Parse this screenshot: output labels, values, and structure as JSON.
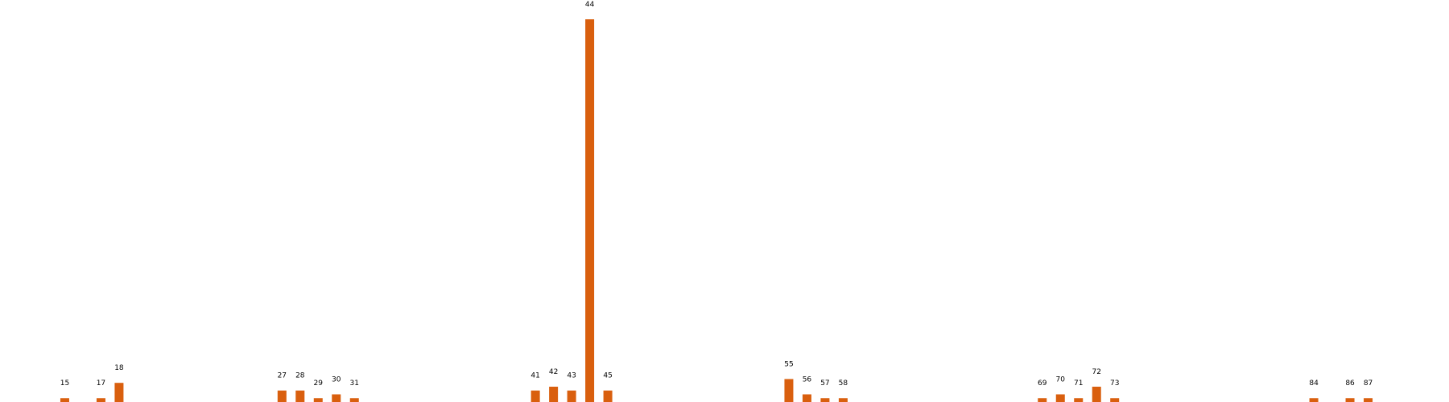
{
  "chart_data": {
    "type": "bar",
    "x": [
      15,
      17,
      18,
      27,
      28,
      29,
      30,
      31,
      41,
      42,
      43,
      44,
      45,
      55,
      56,
      57,
      58,
      69,
      70,
      71,
      72,
      73,
      84,
      86,
      87
    ],
    "values": [
      1,
      1,
      5,
      3,
      3,
      1,
      2,
      1,
      3,
      4,
      3,
      100,
      3,
      6,
      2,
      1,
      1,
      1,
      2,
      1,
      4,
      1,
      1,
      1,
      1
    ],
    "xlim": [
      12,
      90
    ],
    "ylim": [
      0,
      100
    ],
    "bar_color": "#d95f0e",
    "label_color": "#000000",
    "background": "#ffffff",
    "grid": false,
    "axes_visible": false
  }
}
